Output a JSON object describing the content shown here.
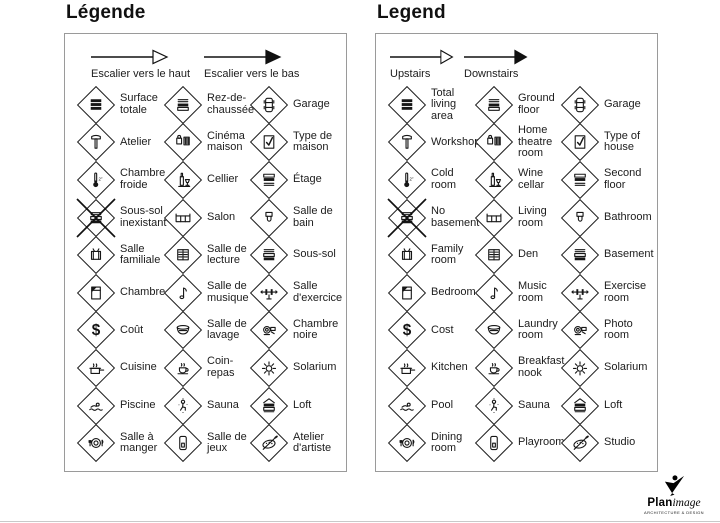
{
  "colors": {
    "ink": "#161616",
    "panel_border": "#9a9a9a",
    "bottom_rule": "#c9c9c9"
  },
  "panels": [
    {
      "id": "french",
      "title": "Légende",
      "arrows": {
        "up_label": "Escalier vers le haut",
        "down_label": "Escalier vers le bas"
      },
      "items": [
        {
          "icon": "levels-total-icon",
          "label": "Surface\ntotale"
        },
        {
          "icon": "levels-ground-icon",
          "label": "Rez-de-\nchaussée"
        },
        {
          "icon": "garage-icon",
          "label": "Garage"
        },
        {
          "icon": "hammer-icon",
          "label": "Atelier"
        },
        {
          "icon": "projector-icon",
          "label": "Cinéma\nmaison"
        },
        {
          "icon": "house-check-icon",
          "label": "Type de\nmaison"
        },
        {
          "icon": "thermometer-icon",
          "label": "Chambre\nfroide"
        },
        {
          "icon": "wine-icon",
          "label": "Cellier"
        },
        {
          "icon": "levels-second-icon",
          "label": "Étage"
        },
        {
          "icon": "no-basement-icon",
          "label": "Sous-sol\ninexistant"
        },
        {
          "icon": "sofa-icon",
          "label": "Salon"
        },
        {
          "icon": "toilet-icon",
          "label": "Salle de\nbain"
        },
        {
          "icon": "tv-icon",
          "label": "Salle\nfamiliale"
        },
        {
          "icon": "books-icon",
          "label": "Salle de\nlecture"
        },
        {
          "icon": "levels-basement-icon",
          "label": "Sous-sol"
        },
        {
          "icon": "bed-icon",
          "label": "Chambre"
        },
        {
          "icon": "music-note-icon",
          "label": "Salle de\nmusique"
        },
        {
          "icon": "dumbbell-icon",
          "label": "Salle\nd'exercice"
        },
        {
          "icon": "dollar-icon",
          "label": "Coût"
        },
        {
          "icon": "laundry-icon",
          "label": "Salle de\nlavage"
        },
        {
          "icon": "camera-icon",
          "label": "Chambre\nnoire"
        },
        {
          "icon": "pot-icon",
          "label": "Cuisine"
        },
        {
          "icon": "cup-icon",
          "label": "Coin-\nrepas"
        },
        {
          "icon": "sun-icon",
          "label": "Solarium"
        },
        {
          "icon": "swimmer-icon",
          "label": "Piscine"
        },
        {
          "icon": "sauna-icon",
          "label": "Sauna"
        },
        {
          "icon": "levels-loft-icon",
          "label": "Loft"
        },
        {
          "icon": "plate-icon",
          "label": "Salle à\nmanger"
        },
        {
          "icon": "door-icon",
          "label": "Salle de\njeux"
        },
        {
          "icon": "palette-icon",
          "label": "Atelier\nd'artiste"
        }
      ]
    },
    {
      "id": "english",
      "title": "Legend",
      "arrows": {
        "up_label": "Upstairs",
        "down_label": "Downstairs"
      },
      "items": [
        {
          "icon": "levels-total-icon",
          "label": "Total\nliving\narea"
        },
        {
          "icon": "levels-ground-icon",
          "label": "Ground\nfloor"
        },
        {
          "icon": "garage-icon",
          "label": "Garage"
        },
        {
          "icon": "hammer-icon",
          "label": "Workshop"
        },
        {
          "icon": "projector-icon",
          "label": "Home\ntheatre\nroom"
        },
        {
          "icon": "house-check-icon",
          "label": "Type of\nhouse"
        },
        {
          "icon": "thermometer-icon",
          "label": "Cold\nroom"
        },
        {
          "icon": "wine-icon",
          "label": "Wine\ncellar"
        },
        {
          "icon": "levels-second-icon",
          "label": "Second\nfloor"
        },
        {
          "icon": "no-basement-icon",
          "label": "No\nbasement"
        },
        {
          "icon": "sofa-icon",
          "label": "Living\nroom"
        },
        {
          "icon": "toilet-icon",
          "label": "Bathroom"
        },
        {
          "icon": "tv-icon",
          "label": "Family\nroom"
        },
        {
          "icon": "books-icon",
          "label": "Den"
        },
        {
          "icon": "levels-basement-icon",
          "label": "Basement"
        },
        {
          "icon": "bed-icon",
          "label": "Bedroom"
        },
        {
          "icon": "music-note-icon",
          "label": "Music\nroom"
        },
        {
          "icon": "dumbbell-icon",
          "label": "Exercise\nroom"
        },
        {
          "icon": "dollar-icon",
          "label": "Cost"
        },
        {
          "icon": "laundry-icon",
          "label": "Laundry\nroom"
        },
        {
          "icon": "camera-icon",
          "label": "Photo\nroom"
        },
        {
          "icon": "pot-icon",
          "label": "Kitchen"
        },
        {
          "icon": "cup-icon",
          "label": "Breakfast\nnook"
        },
        {
          "icon": "sun-icon",
          "label": "Solarium"
        },
        {
          "icon": "swimmer-icon",
          "label": "Pool"
        },
        {
          "icon": "sauna-icon",
          "label": "Sauna"
        },
        {
          "icon": "levels-loft-icon",
          "label": "Loft"
        },
        {
          "icon": "plate-icon",
          "label": "Dining\nroom"
        },
        {
          "icon": "door-icon",
          "label": "Playroom"
        },
        {
          "icon": "palette-icon",
          "label": "Studio"
        }
      ]
    }
  ],
  "logo": {
    "text_primary": "Plan",
    "text_secondary": "image",
    "tagline": "ARCHITECTURE & DESIGN"
  }
}
